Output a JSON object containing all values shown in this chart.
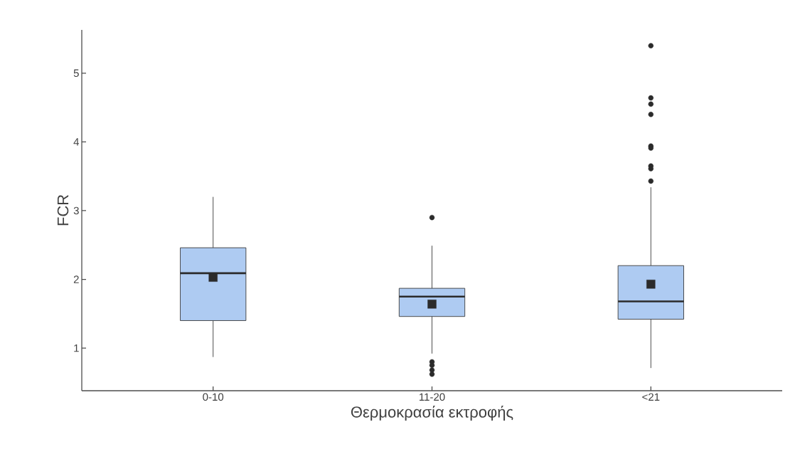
{
  "chart_data": {
    "type": "box",
    "xlabel": "Θερμοκρασία εκτροφής",
    "ylabel": "FCR",
    "categories": [
      "0-10",
      "11-20",
      "<21"
    ],
    "color": "#aecbf2",
    "boxes": [
      {
        "low": 0.87,
        "q1": 1.4,
        "median": 2.09,
        "q3": 2.46,
        "high": 3.2,
        "mean": 2.03
      },
      {
        "low": 0.92,
        "q1": 1.46,
        "median": 1.75,
        "q3": 1.87,
        "high": 2.49,
        "mean": 1.64,
        "outliers": [
          2.9,
          0.8,
          0.75,
          0.68,
          0.62
        ]
      },
      {
        "low": 0.71,
        "q1": 1.42,
        "median": 1.68,
        "q3": 2.2,
        "high": 3.34,
        "mean": 1.93,
        "outliers": [
          5.4,
          4.64,
          4.55,
          4.4,
          3.94,
          3.91,
          3.65,
          3.61,
          3.43
        ]
      }
    ],
    "ylim": [
      0.38,
      5.63
    ],
    "yticks": [
      1,
      2,
      3,
      4,
      5
    ]
  }
}
